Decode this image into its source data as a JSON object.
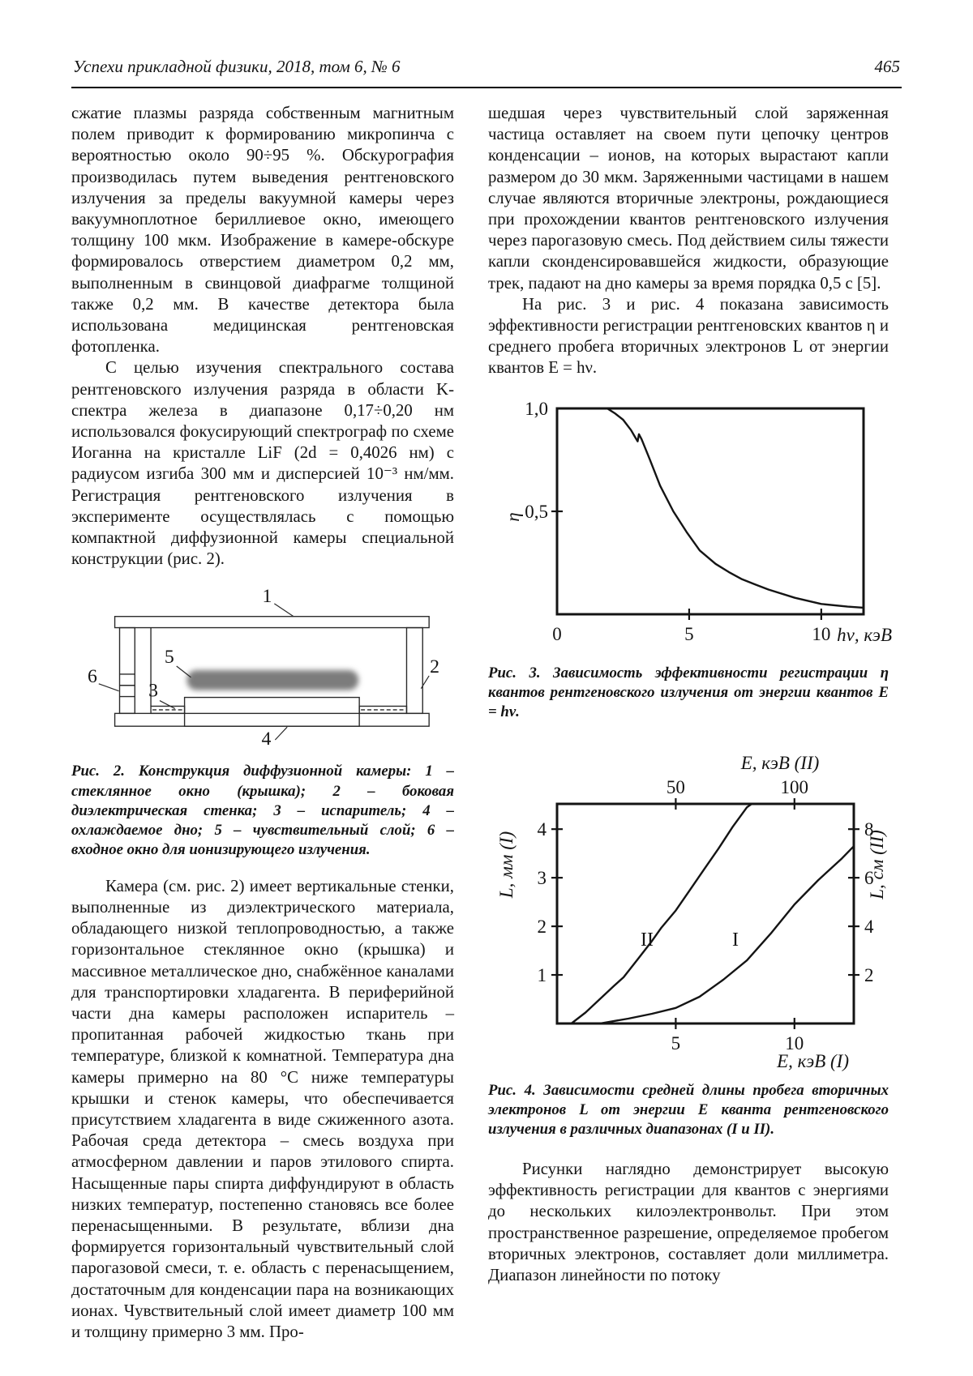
{
  "header": {
    "journal": "Успехи прикладной физики, 2018, том 6, № 6",
    "page_number": "465"
  },
  "left_column": {
    "p1": "сжатие плазмы разряда собственным магнитным полем приводит к формированию микропинча с вероятностью около 90÷95 %. Обскурография производилась путем выведения рентгеновского излучения за пределы вакуумной камеры через вакуумноплотное бериллиевое окно, имеющего толщину 100 мкм. Изображение в камере-обскуре формировалось отверстием диаметром 0,2 мм, выполненным в свинцовой диафрагме толщиной также 0,2 мм. В качестве детектора была использована медицинская рентгеновская фотопленка.",
    "p2": "С целью изучения спектрального состава рентгеновского излучения разряда в области K-спектра железа в диапазоне 0,17÷0,20 нм использовался фокусирующий спектрограф по схеме Иоганна на кристалле LiF (2d = 0,4026 нм) с радиусом изгиба 300 мм и дисперсией 10⁻³ нм/мм. Регистрация рентгеновского излучения в эксперименте осуществлялась с помощью компактной диффузионной камеры специальной конструкции (рис. 2).",
    "fig2": {
      "labels": [
        "1",
        "2",
        "3",
        "4",
        "5",
        "6"
      ],
      "sensitive_layer_color": "#7b7b7b",
      "caption": "Рис. 2. Конструкция диффузионной камеры: 1 – стеклянное окно (крышка); 2 – боковая диэлектрическая стенка; 3 – испаритель; 4 – охлаждаемое дно; 5 – чувствительный слой; 6 – входное окно для ионизирующего излучения."
    },
    "p3": "Камера (см. рис. 2) имеет вертикальные стенки, выполненные из диэлектрического материала, обладающего низкой теплопроводностью, а также горизонтальное стеклянное окно (крышка) и массивное металлическое дно, снабжённое каналами для транспортировки хладагента. В периферийной части дна камеры расположен испаритель – пропитанная рабочей жидкостью ткань при температуре, близкой к комнатной. Температура дна камеры примерно на 80 °С ниже температуры крышки и стенок камеры, что обеспечивается присутствием хладагента в виде сжиженного азота. Рабочая среда детектора – смесь воздуха при атмосферном давлении и паров этилового спирта. Насыщенные пары спирта диффундируют в область низких температур, постепенно становясь все более перенасыщенными. В результате, вблизи дна формируется горизонтальный чувствительный слой парогазовой смеси, т. е. область с перенасыщением, достаточным для конденсации пара на возникающих ионах. Чувствительный слой имеет диаметр 100 мм и толщину примерно 3 мм. Про-"
  },
  "right_column": {
    "p1": "шедшая через чувствительный слой заряженная частица оставляет на своем пути цепочку центров конденсации – ионов, на которых вырастают капли размером до 30 мкм. Заряженными частицами в нашем случае являются вторичные электроны, рождающиеся при прохождении квантов рентгеновского излучения через парогазовую смесь. Под действием силы тяжести капли сконденсировавшейся жидкости, образующие трек, падают на дно камеры за время порядка 0,5 с [5].",
    "p2": "На рис. 3 и рис. 4 показана зависимость эффективности регистрации рентгеновских квантов η и среднего пробега вторичных электронов L от энергии квантов E = hν.",
    "fig3_caption": "Рис. 3. Зависимость эффективности регистрации η квантов рентгеновского излучения от энергии квантов E = hν.",
    "fig4_caption": "Рис. 4. Зависимости средней длины пробега вторичных электронов L от энергии E кванта рентгеновского излучения в различных диапазонах (I и II).",
    "p3": "Рисунки наглядно демонстрирует высокую эффективность регистрации для квантов с энергиями до нескольких килоэлектронвольт. При этом пространственное разрешение, определяемое пробегом вторичных электронов, составляет доли миллиметра. Диапазон линейности по потоку"
  },
  "chart_data": [
    {
      "type": "line",
      "figure": "Рис. 3",
      "title": "Зависимость эффективности регистрации η квантов рентгеновского излучения от энергии квантов E = hν",
      "xlabel": "hν, кэВ",
      "ylabel": "η",
      "xlim": [
        0,
        11.6
      ],
      "ylim": [
        0,
        1.0
      ],
      "grid": false,
      "xticks": [
        {
          "v": 0,
          "label": "0",
          "mark": false
        },
        {
          "v": 5,
          "label": "5",
          "mark": true
        },
        {
          "v": 10,
          "label": "10",
          "mark": true
        }
      ],
      "yticks": [
        {
          "v": 1.0,
          "label": "1,0",
          "mark": false
        },
        {
          "v": 0.5,
          "label": "0,5",
          "mark": true
        }
      ],
      "series": [
        {
          "name": "eta",
          "x": [
            0,
            1.0,
            1.9,
            2.2,
            2.5,
            2.8,
            2.95,
            3.05,
            3.1,
            3.2,
            3.5,
            3.9,
            4.4,
            4.9,
            5.4,
            6.0,
            6.5,
            7.0,
            7.5,
            8.0,
            9.0,
            10.0,
            11.0,
            11.6
          ],
          "y": [
            1.0,
            1.0,
            1.0,
            0.975,
            0.945,
            0.895,
            0.862,
            0.84,
            0.875,
            0.85,
            0.755,
            0.625,
            0.5,
            0.4,
            0.31,
            0.245,
            0.205,
            0.17,
            0.145,
            0.12,
            0.08,
            0.05,
            0.037,
            0.032
          ]
        }
      ]
    },
    {
      "type": "line",
      "figure": "Рис. 4",
      "title": "Зависимости средней длины пробега вторичных электронов L от энергии E кванта рентгеновского излучения в различных диапазонах (I и II)",
      "x_bottom": {
        "label": "E, кэВ (I)",
        "lim": [
          0,
          12.5
        ],
        "ticks": [
          5,
          10
        ]
      },
      "x_top": {
        "label": "E, кэВ (II)",
        "lim": [
          0,
          125
        ],
        "ticks": [
          50,
          100
        ]
      },
      "y_left": {
        "label": "L, мм (I)",
        "lim": [
          0,
          4.52
        ],
        "ticks": [
          1,
          2,
          3,
          4
        ]
      },
      "y_right": {
        "label": "L, см (II)",
        "lim": [
          0,
          9.04
        ],
        "ticks": [
          2,
          4,
          6,
          8
        ]
      },
      "grid": false,
      "series": [
        {
          "name": "I",
          "axes": "bottom-left",
          "x": [
            1.8,
            3,
            4,
            5,
            6,
            7,
            8,
            9,
            10,
            11,
            12,
            12.5
          ],
          "y": [
            0,
            0.1,
            0.2,
            0.32,
            0.55,
            0.9,
            1.3,
            1.85,
            2.45,
            2.95,
            3.4,
            3.65
          ]
        },
        {
          "name": "II",
          "axes": "top-right",
          "x": [
            6,
            12,
            18,
            24,
            28,
            34,
            40,
            44,
            50,
            56,
            62,
            68,
            74,
            80,
            82
          ],
          "y": [
            0,
            0.45,
            1.0,
            1.55,
            1.9,
            2.65,
            3.4,
            3.95,
            4.65,
            5.5,
            6.35,
            7.2,
            8.1,
            8.9,
            9.04
          ]
        }
      ]
    }
  ]
}
